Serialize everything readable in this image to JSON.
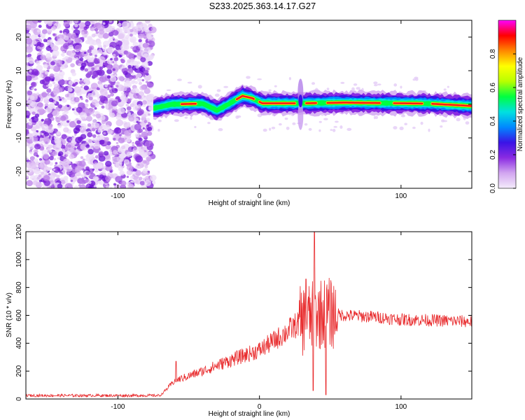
{
  "title": "S233.2025.363.14.17.G27",
  "chart_data": [
    {
      "type": "heatmap",
      "name": "spectrogram",
      "xlabel": "Height of straight line (km)",
      "ylabel": "Frequency (Hz)",
      "xlim": [
        -165,
        150
      ],
      "ylim": [
        -25,
        25
      ],
      "xticks": [
        -100,
        0,
        100
      ],
      "xtick_labels": [
        "-100",
        "0",
        "100"
      ],
      "yticks": [
        20,
        10,
        0,
        -10,
        -20
      ],
      "ytick_labels": [
        "20",
        "10",
        "0",
        "-10",
        "-20"
      ],
      "noise_region_end_km": -75,
      "ridge_points": [
        {
          "x": -75,
          "y": -1.2
        },
        {
          "x": -62,
          "y": 0.0
        },
        {
          "x": -40,
          "y": 0.2
        },
        {
          "x": -30,
          "y": -1.8
        },
        {
          "x": -22,
          "y": 0.0
        },
        {
          "x": -12,
          "y": 2.5
        },
        {
          "x": -5,
          "y": 1.8
        },
        {
          "x": 2,
          "y": 0.3
        },
        {
          "x": 30,
          "y": 0.3
        },
        {
          "x": 60,
          "y": 0.5
        },
        {
          "x": 120,
          "y": 0.2
        },
        {
          "x": 150,
          "y": -0.5
        }
      ],
      "colorbar": {
        "label": "Normalized spectral amplitude",
        "ticks": [
          0.0,
          0.2,
          0.4,
          0.6,
          0.8
        ],
        "tick_labels": [
          "0.0",
          "0.2",
          "0.4",
          "0.6",
          "0.8"
        ],
        "range": [
          0,
          1
        ],
        "colors": [
          "#f4ecfb",
          "#d2a6f0",
          "#8a2be2",
          "#3a14e6",
          "#0088ff",
          "#00e0e0",
          "#00ff40",
          "#b8ff00",
          "#ffff00",
          "#ff8800",
          "#ff0000",
          "#ff00ff"
        ]
      }
    },
    {
      "type": "line",
      "name": "snr",
      "xlabel": "Height of straight line (km)",
      "ylabel": "SNR (10 * v/v)",
      "xlim": [
        -165,
        150
      ],
      "ylim": [
        0,
        1200
      ],
      "xticks": [
        -100,
        0,
        100
      ],
      "xtick_labels": [
        "-100",
        "0",
        "100"
      ],
      "yticks": [
        0,
        200,
        400,
        600,
        800,
        1000,
        1200
      ],
      "ytick_labels": [
        "0",
        "200",
        "400",
        "600",
        "800",
        "1000",
        "1200"
      ],
      "color": "#e8292b",
      "envelope": [
        {
          "x": -165,
          "y": 25
        },
        {
          "x": -70,
          "y": 25
        },
        {
          "x": -60,
          "y": 130
        },
        {
          "x": -40,
          "y": 200
        },
        {
          "x": -20,
          "y": 280
        },
        {
          "x": 0,
          "y": 350
        },
        {
          "x": 15,
          "y": 450
        },
        {
          "x": 30,
          "y": 560
        },
        {
          "x": 45,
          "y": 620
        },
        {
          "x": 60,
          "y": 600
        },
        {
          "x": 80,
          "y": 590
        },
        {
          "x": 100,
          "y": 570
        },
        {
          "x": 120,
          "y": 565
        },
        {
          "x": 150,
          "y": 555
        }
      ],
      "notable_points": [
        {
          "x": -59,
          "y": 270
        },
        {
          "x": 33,
          "y": 860
        },
        {
          "x": 38,
          "y": 60
        },
        {
          "x": 39,
          "y": 1200
        },
        {
          "x": 47,
          "y": 30
        }
      ]
    }
  ]
}
